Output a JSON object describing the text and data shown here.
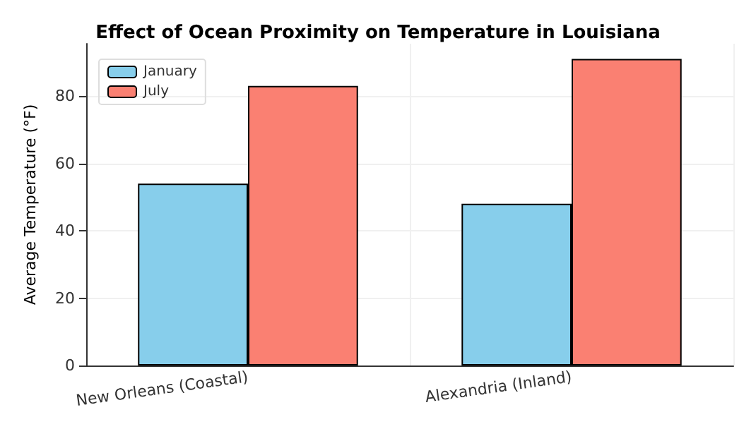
{
  "chart_data": {
    "type": "bar",
    "title": "Effect of Ocean Proximity on Temperature in Louisiana",
    "ylabel": "Average Temperature (°F)",
    "categories": [
      "New Orleans (Coastal)",
      "Alexandria (Inland)"
    ],
    "series": [
      {
        "name": "January",
        "color": "#87ceeb",
        "values": [
          54,
          48
        ]
      },
      {
        "name": "July",
        "color": "#fa8072",
        "values": [
          83,
          91
        ]
      }
    ],
    "ylim": [
      0,
      95.5
    ],
    "yticks": [
      0,
      20,
      40,
      60,
      80
    ],
    "grid": true,
    "legend": "top left"
  }
}
